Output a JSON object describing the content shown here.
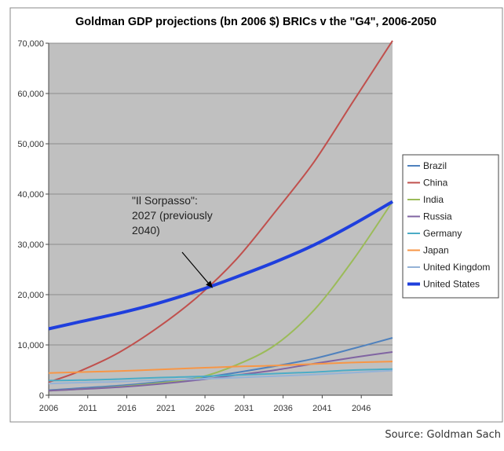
{
  "chart_data": {
    "type": "line",
    "title": "Goldman GDP projections (bn 2006 $) BRICs v the \"G4\", 2006-2050",
    "xlabel": "",
    "ylabel": "",
    "x_ticks": [
      "2006",
      "2011",
      "2016",
      "2021",
      "2026",
      "2031",
      "2036",
      "2041",
      "2046"
    ],
    "y_ticks": [
      "0",
      "10,000",
      "20,000",
      "30,000",
      "40,000",
      "50,000",
      "60,000",
      "70,000"
    ],
    "x": [
      2006,
      2010,
      2015,
      2020,
      2025,
      2030,
      2035,
      2040,
      2045,
      2050
    ],
    "ylim": [
      0,
      70000
    ],
    "xlim": [
      2006,
      2050
    ],
    "grid": true,
    "legend_position": "right",
    "background": "#c0c0c0",
    "series": [
      {
        "name": "Brazil",
        "color": "#4f81bd",
        "width": 2,
        "values": [
          1000,
          1400,
          1900,
          2600,
          3400,
          4500,
          5800,
          7300,
          9300,
          11400
        ]
      },
      {
        "name": "China",
        "color": "#c0504d",
        "width": 2,
        "values": [
          2600,
          4800,
          8500,
          13500,
          19500,
          27000,
          36500,
          46500,
          58500,
          70500
        ]
      },
      {
        "name": "India",
        "color": "#9bbb59",
        "width": 2,
        "values": [
          900,
          1200,
          1700,
          2400,
          3400,
          6000,
          10000,
          17000,
          27000,
          38500
        ]
      },
      {
        "name": "Russia",
        "color": "#8064a2",
        "width": 2,
        "values": [
          900,
          1200,
          1600,
          2200,
          3000,
          4000,
          5000,
          6300,
          7500,
          8600
        ]
      },
      {
        "name": "Germany",
        "color": "#4bacc6",
        "width": 2,
        "values": [
          2900,
          3000,
          3200,
          3500,
          3700,
          4000,
          4300,
          4600,
          5000,
          5200
        ]
      },
      {
        "name": "Japan",
        "color": "#f79646",
        "width": 2,
        "values": [
          4400,
          4600,
          4800,
          5100,
          5400,
          5700,
          5900,
          6200,
          6500,
          6700
        ]
      },
      {
        "name": "United Kingdom",
        "color": "#95b3d7",
        "width": 2,
        "values": [
          2300,
          2500,
          2700,
          3000,
          3200,
          3500,
          3800,
          4100,
          4500,
          4900
        ]
      },
      {
        "name": "United States",
        "color": "#1f3fdd",
        "width": 4,
        "values": [
          13200,
          14600,
          16300,
          18300,
          20700,
          23500,
          26500,
          29900,
          34000,
          38500
        ]
      }
    ],
    "annotations": [
      {
        "lines": [
          "\"Il Sorpasso\":",
          "2027 (previously",
          "2040)"
        ],
        "arrow_to": {
          "x": 2027,
          "y": 21300
        }
      }
    ],
    "source": "Source: Goldman Sach"
  }
}
